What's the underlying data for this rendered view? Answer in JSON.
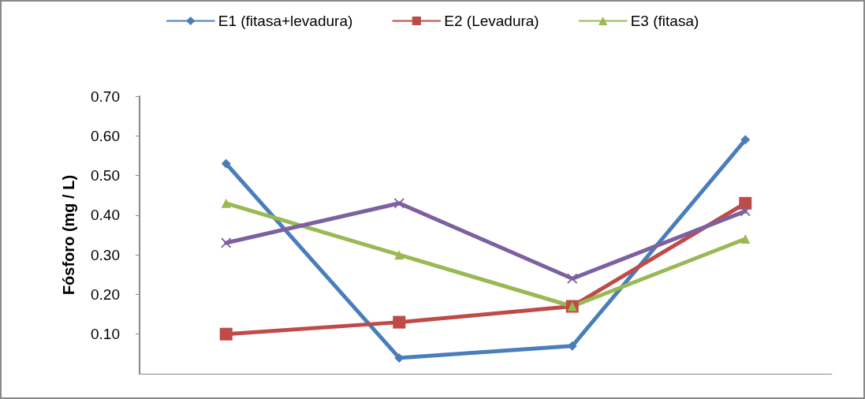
{
  "chart_data": {
    "type": "line",
    "ylabel": "Fósforo (mg / L)",
    "categories": [
      null,
      null,
      null,
      null
    ],
    "ylim": [
      0,
      0.7
    ],
    "yticks": [
      {
        "value": 0.1,
        "label": "0.10"
      },
      {
        "value": 0.2,
        "label": "0.20"
      },
      {
        "value": 0.3,
        "label": "0.30"
      },
      {
        "value": 0.4,
        "label": "0.40"
      },
      {
        "value": 0.5,
        "label": "0.50"
      },
      {
        "value": 0.6,
        "label": "0.60"
      },
      {
        "value": 0.7,
        "label": "0.70"
      }
    ],
    "grid": false,
    "legend": "top",
    "series": [
      {
        "name": "E1 (fitasa+levadura)",
        "color": "#4a7ebb",
        "marker": "diamond",
        "values": [
          0.53,
          0.04,
          0.07,
          0.59
        ]
      },
      {
        "name": "E2 (Levadura)",
        "color": "#be4b48",
        "marker": "square",
        "values": [
          0.1,
          0.13,
          0.17,
          0.43
        ]
      },
      {
        "name": "E3 (fitasa)",
        "color": "#98b954",
        "marker": "triangle",
        "values": [
          0.43,
          0.3,
          0.17,
          0.34
        ]
      },
      {
        "color": "#7d60a0",
        "marker": "cross",
        "values": [
          0.33,
          0.43,
          0.24,
          0.41
        ]
      }
    ]
  }
}
